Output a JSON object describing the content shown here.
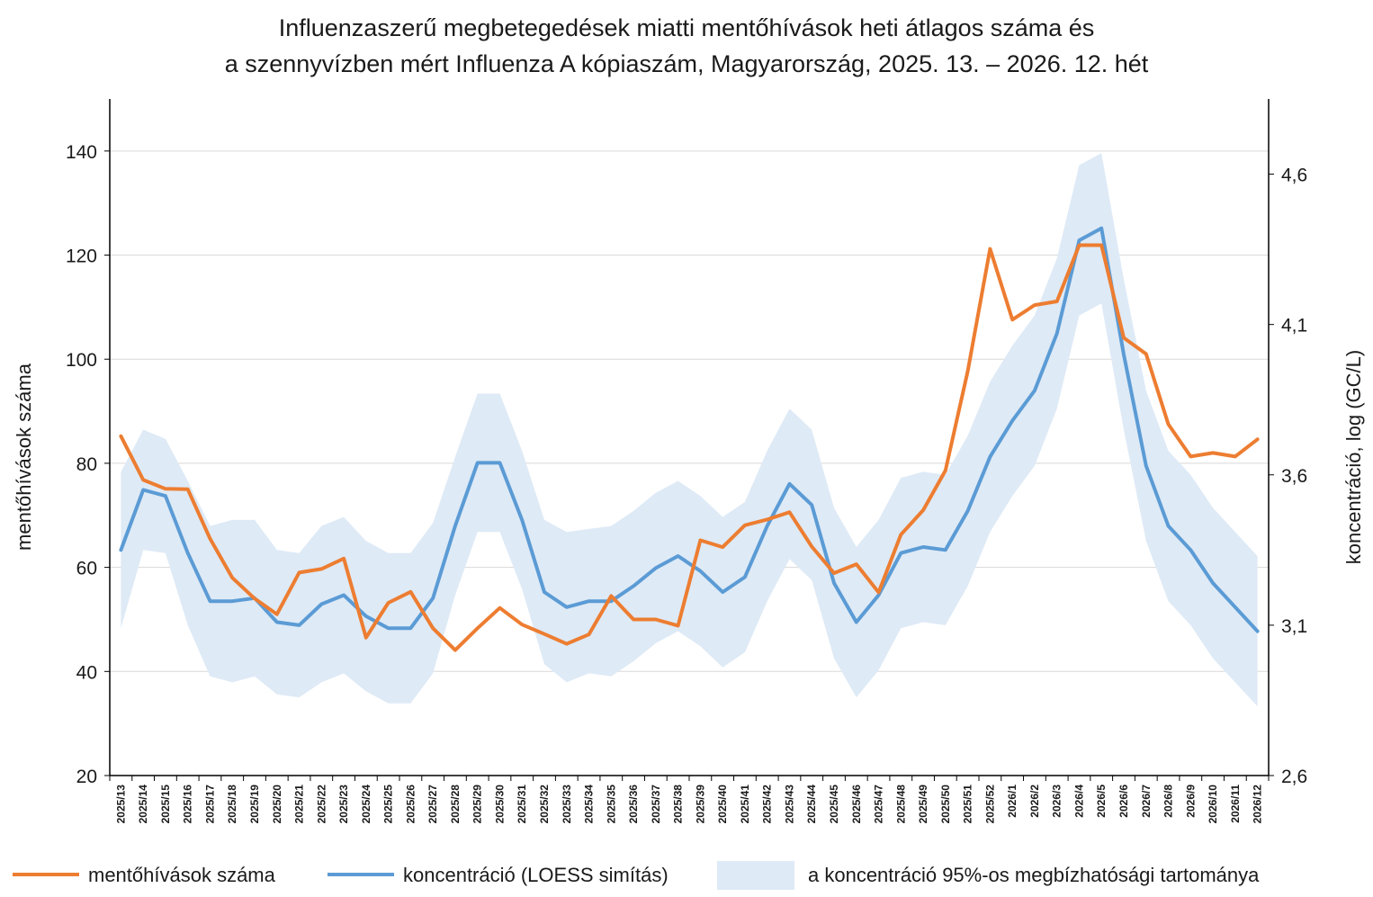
{
  "chart_data": {
    "type": "line",
    "title_line1": "Influenzaszerű megbetegedések miatti mentőhívások heti átlagos száma és",
    "title_line2": "a szennyvízben mért Influenza A kópiaszám, Magyarország, 2025. 13. – 2026. 12. hét",
    "ylabel_left": "mentőhívások száma",
    "ylabel_right": "koncentráció, log (GC/L)",
    "colors": {
      "calls": "#ED7D31",
      "conc": "#5B9BD5",
      "band": "#DEEAF6",
      "grid": "#D9D9D9",
      "axis": "#000000"
    },
    "yleft": {
      "min": 20,
      "max": 150,
      "ticks": [
        20,
        40,
        60,
        80,
        100,
        120,
        140
      ],
      "tick_labels": [
        "20",
        "40",
        "60",
        "80",
        "100",
        "120",
        "140"
      ]
    },
    "yright": {
      "min": 2.6,
      "max": 4.85,
      "ticks": [
        2.6,
        3.1,
        3.6,
        4.1,
        4.6
      ],
      "tick_labels": [
        "2,6",
        "3,1",
        "3,6",
        "4,1",
        "4,6"
      ]
    },
    "categories": [
      "2025/13",
      "2025/14",
      "2025/15",
      "2025/16",
      "2025/17",
      "2025/18",
      "2025/19",
      "2025/20",
      "2025/21",
      "2025/22",
      "2025/23",
      "2025/24",
      "2025/25",
      "2025/26",
      "2025/27",
      "2025/28",
      "2025/29",
      "2025/30",
      "2025/31",
      "2025/32",
      "2025/33",
      "2025/34",
      "2025/35",
      "2025/36",
      "2025/37",
      "2025/38",
      "2025/39",
      "2025/40",
      "2025/41",
      "2025/42",
      "2025/43",
      "2025/44",
      "2025/45",
      "2025/46",
      "2025/47",
      "2025/48",
      "2025/49",
      "2025/50",
      "2025/51",
      "2025/52",
      "2026/1",
      "2026/2",
      "2026/3",
      "2026/4",
      "2026/5",
      "2026/6",
      "2026/7",
      "2026/8",
      "2026/9",
      "2026/10",
      "2026/11",
      "2026/12"
    ],
    "series": [
      {
        "name": "mentőhívások száma",
        "axis": "left",
        "values": [
          85.2,
          76.8,
          75.1,
          75.0,
          65.5,
          58.0,
          54.0,
          51.0,
          59.0,
          59.7,
          61.7,
          46.5,
          53.2,
          55.3,
          48.3,
          44.1,
          48.3,
          52.2,
          49.0,
          47.2,
          45.3,
          47.1,
          54.5,
          50.0,
          50.0,
          48.8,
          65.2,
          63.9,
          68.1,
          69.2,
          70.6,
          64.0,
          58.9,
          60.6,
          55.2,
          66.3,
          71.0,
          78.6,
          97.7,
          121.2,
          107.6,
          110.4,
          111.1,
          121.9,
          121.9,
          104.1,
          101.0,
          87.5,
          81.3,
          82.0,
          81.3,
          84.6
        ]
      },
      {
        "name": "koncentráció (LOESS simítás)",
        "axis": "right",
        "values": [
          3.35,
          3.55,
          3.53,
          3.34,
          3.18,
          3.18,
          3.19,
          3.11,
          3.1,
          3.17,
          3.2,
          3.13,
          3.09,
          3.09,
          3.19,
          3.43,
          3.64,
          3.64,
          3.45,
          3.21,
          3.16,
          3.18,
          3.18,
          3.23,
          3.29,
          3.33,
          3.28,
          3.21,
          3.26,
          3.43,
          3.57,
          3.5,
          3.24,
          3.11,
          3.2,
          3.34,
          3.36,
          3.35,
          3.48,
          3.66,
          3.78,
          3.88,
          4.07,
          4.38,
          4.42,
          4.0,
          3.63,
          3.43,
          3.35,
          3.24,
          3.16,
          3.08
        ]
      },
      {
        "name": "a koncentráció 95%-os megbízhatósági tartománya",
        "axis": "right",
        "type": "band",
        "upper": [
          3.61,
          3.75,
          3.72,
          3.58,
          3.43,
          3.45,
          3.45,
          3.35,
          3.34,
          3.43,
          3.46,
          3.38,
          3.34,
          3.34,
          3.44,
          3.66,
          3.87,
          3.87,
          3.68,
          3.45,
          3.41,
          3.42,
          3.43,
          3.48,
          3.54,
          3.58,
          3.53,
          3.46,
          3.51,
          3.68,
          3.82,
          3.75,
          3.49,
          3.36,
          3.45,
          3.59,
          3.61,
          3.6,
          3.73,
          3.91,
          4.03,
          4.13,
          4.32,
          4.63,
          4.67,
          4.25,
          3.88,
          3.68,
          3.6,
          3.49,
          3.41,
          3.33
        ],
        "lower": [
          3.09,
          3.35,
          3.34,
          3.1,
          2.93,
          2.91,
          2.93,
          2.87,
          2.86,
          2.91,
          2.94,
          2.88,
          2.84,
          2.84,
          2.94,
          3.2,
          3.41,
          3.41,
          3.22,
          2.97,
          2.91,
          2.94,
          2.93,
          2.98,
          3.04,
          3.08,
          3.03,
          2.96,
          3.01,
          3.18,
          3.32,
          3.25,
          2.99,
          2.86,
          2.95,
          3.09,
          3.11,
          3.1,
          3.23,
          3.41,
          3.53,
          3.63,
          3.82,
          4.13,
          4.17,
          3.75,
          3.38,
          3.18,
          3.1,
          2.99,
          2.91,
          2.83
        ]
      }
    ],
    "legend": {
      "calls_label": "mentőhívások száma",
      "conc_label": "koncentráció (LOESS simítás)",
      "band_label": "a koncentráció 95%-os megbízhatósági tartománya",
      "placement": "bottom"
    },
    "grid": true
  }
}
